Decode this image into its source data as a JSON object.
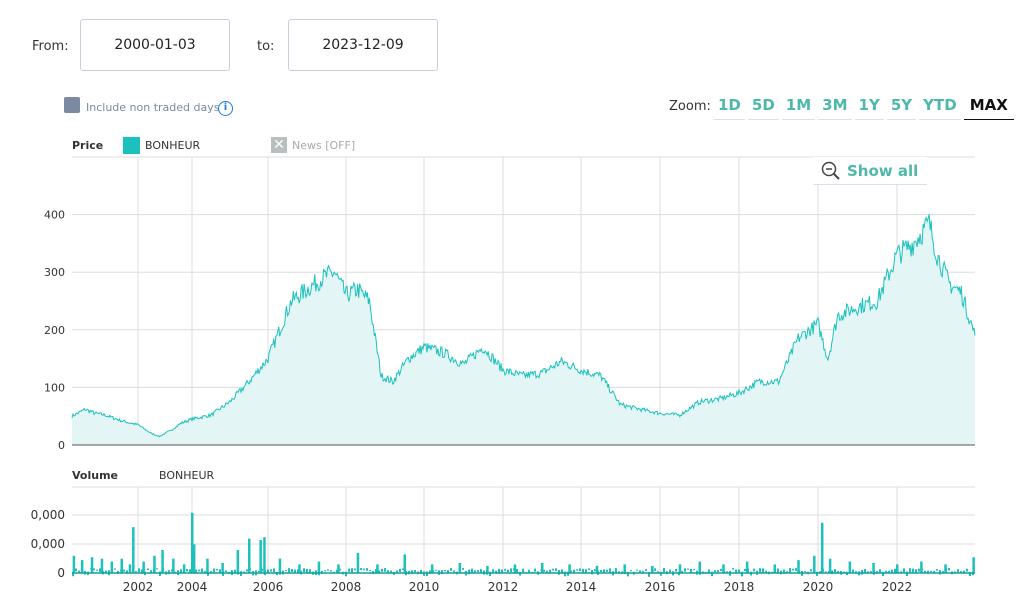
{
  "range": {
    "from_label": "From:",
    "from_value": "2000-01-03",
    "to_label": "to:",
    "to_value": "2023-12-09"
  },
  "options": {
    "non_traded_label": "Include non traded days",
    "info_icon": "i"
  },
  "zoom": {
    "label": "Zoom:",
    "buttons": [
      "1D",
      "5D",
      "1M",
      "3M",
      "1Y",
      "5Y",
      "YTD",
      "MAX"
    ],
    "active": "MAX"
  },
  "show_all": "Show all",
  "colors": {
    "series": "#1cc1bd",
    "fill": "#e3f6f5",
    "accent": "#4fb8aa"
  },
  "chart_data": [
    {
      "type": "area",
      "title": "Price",
      "legend": [
        "BONHEUR"
      ],
      "news_toggle": "News [OFF]",
      "ylim": [
        0,
        500
      ],
      "yticks": [
        "0",
        "100",
        "200",
        "300",
        "400"
      ],
      "xticks": [
        "2002",
        "2004",
        "2006",
        "2008",
        "2010",
        "2012",
        "2014",
        "2016",
        "2018",
        "2020",
        "2022"
      ],
      "x": [
        2000.0,
        2000.4,
        2000.7,
        2001.0,
        2001.5,
        2002.0,
        2002.5,
        2002.8,
        2003.2,
        2003.6,
        2004.0,
        2004.5,
        2005.0,
        2005.5,
        2006.0,
        2006.3,
        2006.6,
        2007.0,
        2007.4,
        2007.7,
        2008.0,
        2008.3,
        2008.6,
        2008.9,
        2009.2,
        2009.6,
        2010.0,
        2010.5,
        2011.0,
        2011.5,
        2012.0,
        2012.5,
        2013.0,
        2013.5,
        2014.0,
        2014.5,
        2015.0,
        2015.5,
        2016.0,
        2016.5,
        2017.0,
        2017.5,
        2018.0,
        2018.5,
        2019.0,
        2019.5,
        2020.0,
        2020.25,
        2020.5,
        2021.0,
        2021.5,
        2022.0,
        2022.4,
        2022.8,
        2023.0,
        2023.3,
        2023.6,
        2023.94
      ],
      "values": [
        50,
        62,
        55,
        52,
        42,
        35,
        20,
        15,
        25,
        38,
        45,
        52,
        75,
        110,
        150,
        200,
        250,
        270,
        290,
        300,
        260,
        270,
        250,
        120,
        110,
        150,
        170,
        160,
        140,
        170,
        130,
        120,
        125,
        145,
        130,
        120,
        70,
        62,
        55,
        52,
        75,
        80,
        90,
        110,
        110,
        185,
        210,
        150,
        225,
        240,
        250,
        330,
        350,
        385,
        330,
        280,
        265,
        190
      ]
    },
    {
      "type": "bar",
      "title": "Volume",
      "legend": [
        "BONHEUR"
      ],
      "yticks": [
        "0",
        "0,000",
        "0,000"
      ],
      "ylim": [
        0,
        3
      ],
      "x": [
        2000.05,
        2000.3,
        2000.6,
        2000.9,
        2001.2,
        2001.5,
        2001.75,
        2001.85,
        2002.2,
        2002.6,
        2002.9,
        2003.3,
        2003.7,
        2004.0,
        2004.05,
        2004.4,
        2004.8,
        2005.2,
        2005.5,
        2005.8,
        2005.9,
        2006.3,
        2006.8,
        2007.3,
        2007.8,
        2008.3,
        2008.8,
        2009.5,
        2010.2,
        2010.9,
        2011.6,
        2012.3,
        2013.0,
        2013.7,
        2014.4,
        2015.1,
        2015.8,
        2016.5,
        2017.0,
        2017.6,
        2018.2,
        2018.9,
        2019.5,
        2019.9,
        2020.1,
        2020.3,
        2020.8,
        2021.4,
        2022.0,
        2022.6,
        2023.2,
        2023.9
      ],
      "values": [
        0.6,
        0.45,
        0.55,
        0.5,
        0.4,
        0.5,
        0.3,
        1.6,
        0.4,
        0.6,
        0.8,
        0.5,
        0.3,
        2.1,
        1.0,
        0.5,
        0.35,
        0.8,
        1.2,
        1.15,
        1.25,
        0.5,
        0.3,
        0.4,
        0.3,
        0.7,
        0.3,
        0.65,
        0.3,
        0.35,
        0.25,
        0.3,
        0.35,
        0.3,
        0.25,
        0.3,
        0.25,
        0.3,
        0.4,
        0.3,
        0.4,
        0.3,
        0.45,
        0.6,
        1.75,
        0.5,
        0.4,
        0.35,
        0.3,
        0.4,
        0.3,
        0.55
      ]
    }
  ]
}
